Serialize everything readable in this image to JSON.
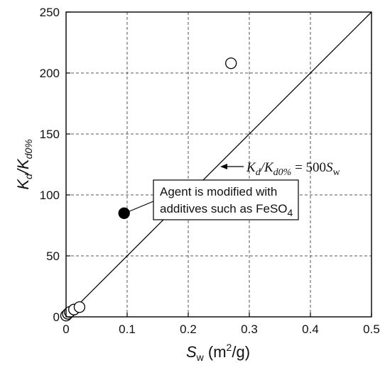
{
  "chart_data": {
    "type": "scatter",
    "title": "",
    "xlabel": {
      "main": "S",
      "sub": "w",
      "unit_pre": " (m",
      "unit_sup": "2",
      "unit_post": "/g)"
    },
    "ylabel": {
      "k1": "K",
      "sub1": "d",
      "slash": "/",
      "k2": "K",
      "sub2": "d0%"
    },
    "xlim": [
      0,
      0.5
    ],
    "ylim": [
      0,
      250
    ],
    "xticks": [
      0,
      0.1,
      0.2,
      0.3,
      0.4,
      0.5
    ],
    "xtick_labels": [
      "0",
      "0.1",
      "0.2",
      "0.3",
      "0.4",
      "0.5"
    ],
    "yticks": [
      0,
      50,
      100,
      150,
      200,
      250
    ],
    "ytick_labels": [
      "0",
      "50",
      "100",
      "150",
      "200",
      "250"
    ],
    "grid": true,
    "series": [
      {
        "marker": "open-circle",
        "color": "#000000",
        "x": [
          0.0,
          0.003,
          0.006,
          0.013,
          0.022,
          0.27
        ],
        "y": [
          1,
          2.5,
          4,
          6,
          8,
          208
        ]
      },
      {
        "marker": "filled-circle",
        "color": "#000000",
        "x": [
          0.095
        ],
        "y": [
          85
        ]
      }
    ],
    "fit_line": {
      "slope": 500,
      "x": [
        0,
        0.5
      ],
      "y": [
        0,
        250
      ]
    },
    "annotations": {
      "equation": {
        "k1": "K",
        "sub1": "d",
        "slash": "/",
        "k2": "K",
        "sub2": "d0%",
        "rhs": " = 500",
        "s": "S",
        "ssub": "w"
      },
      "callout": {
        "line1": "Agent is modified with",
        "line2": "additives such as FeSO",
        "line2_sub": "4"
      }
    }
  }
}
